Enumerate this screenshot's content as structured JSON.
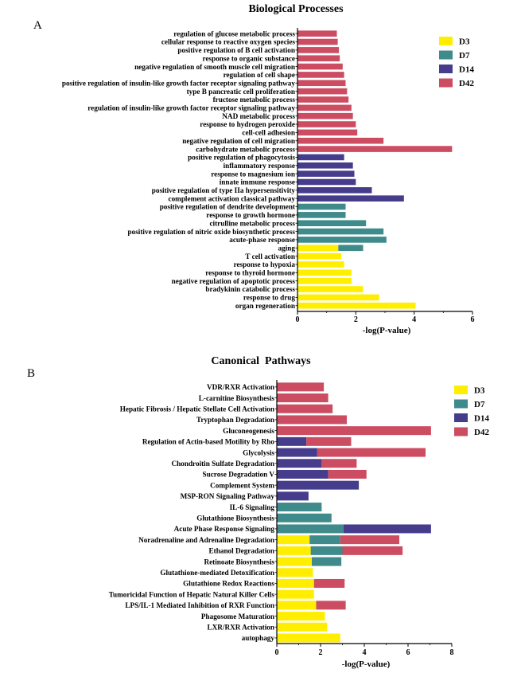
{
  "figure": {
    "panels": [
      {
        "letter": "A"
      },
      {
        "letter": "B"
      }
    ]
  },
  "colors": {
    "D3": "#ffee00",
    "D7": "#3f8a8a",
    "D14": "#463c8c",
    "D42": "#cc4c62"
  },
  "chart_data": [
    {
      "type": "bar",
      "orientation": "horizontal",
      "stacked": true,
      "title": "Biological Processes",
      "xlabel": "-log(P-value)",
      "xlim": [
        0,
        6
      ],
      "xticks": [
        0,
        2,
        4,
        6
      ],
      "legend_position": "top-right",
      "categories": [
        "regulation of glucose metabolic process",
        "cellular response to reactive oxygen species",
        "positive regulation of B cell activation",
        "response to organic substance",
        "negative regulation of smooth muscle cell migration",
        "regulation of cell shape",
        "positive regulation of insulin-like growth factor receptor signaling pathway",
        "type B pancreatic cell proliferation",
        "fructose metabolic process",
        "regulation of insulin-like growth factor receptor signaling pathway",
        "NAD metabolic process",
        "response to hydrogen peroxide",
        "cell-cell adhesion",
        "negative regulation of cell migration",
        "carbohydrate metabolic process",
        "positive regulation of phagocytosis",
        "inflammatory response",
        "response to magnesium ion",
        "innate immune response",
        "positive regulation of type IIa hypersensitivity",
        "complement activation classical pathway",
        "positive regulation of dendrite development",
        "response to growth hormone",
        "citrulline metabolic process",
        "positive regulation of nitric oxide biosynthetic process",
        "acute-phase response",
        "aging",
        "T cell activation",
        "response to hypoxia",
        "response to thyroid hormone",
        "negative regulation of apoptotic process",
        "bradykinin catabolic process",
        "response to drug",
        "organ regeneration"
      ],
      "series": [
        {
          "name": "D3",
          "values": [
            0,
            0,
            0,
            0,
            0,
            0,
            0,
            0,
            0,
            0,
            0,
            0,
            0,
            0,
            0,
            0,
            0,
            0,
            0,
            0,
            0,
            0,
            0,
            0,
            0,
            0,
            1.4,
            1.5,
            1.6,
            1.85,
            1.85,
            2.25,
            2.8,
            4.05
          ]
        },
        {
          "name": "D7",
          "values": [
            0,
            0,
            0,
            0,
            0,
            0,
            0,
            0,
            0,
            0,
            0,
            0,
            0,
            0,
            0,
            0,
            0,
            0,
            0,
            0,
            0,
            1.65,
            1.65,
            2.35,
            2.95,
            3.05,
            0.85,
            0,
            0,
            0,
            0,
            0,
            0,
            0
          ]
        },
        {
          "name": "D14",
          "values": [
            0,
            0,
            0,
            0,
            0,
            0,
            0,
            0,
            0,
            0,
            0,
            0,
            0,
            0,
            0,
            1.6,
            1.9,
            1.95,
            2.0,
            2.55,
            3.65,
            0,
            0,
            0,
            0,
            0,
            0,
            0,
            0,
            0,
            0,
            0,
            0,
            0
          ]
        },
        {
          "name": "D42",
          "values": [
            1.35,
            1.38,
            1.42,
            1.45,
            1.55,
            1.6,
            1.65,
            1.7,
            1.75,
            1.85,
            1.9,
            2.0,
            2.05,
            2.95,
            5.3,
            0,
            0,
            0,
            0,
            0,
            0,
            0,
            0,
            0,
            0,
            0,
            0,
            0,
            0,
            0,
            0,
            0,
            0,
            0
          ]
        }
      ]
    },
    {
      "type": "bar",
      "orientation": "horizontal",
      "stacked": true,
      "title": "Canonical  Pathways",
      "xlabel": "-log(P-value)",
      "xlim": [
        0,
        8
      ],
      "xticks": [
        0,
        2,
        4,
        6,
        8
      ],
      "legend_position": "top-right",
      "categories": [
        "VDR/RXR Activation",
        "L-carnitine Biosynthesis",
        "Hepatic Fibrosis / Hepatic Stellate Cell Activation",
        "Tryptophan Degradation",
        "Gluconeogenesis",
        "Regulation of Actin-based Motility by Rho",
        "Glycolysis",
        "Chondroitin Sulfate Degradation",
        "Sucrose Degradation V",
        "Complement System",
        "MSP-RON Signaling Pathway",
        "IL-6 Signaling",
        "Glutathione Biosynthesis",
        "Acute Phase Response Signaling",
        "Noradrenaline and Adrenaline Degradation",
        "Ethanol Degradation",
        "Retinoate Biosynthesis",
        "Glutathione-mediated Detoxification",
        "Glutathione Redox Reactions",
        "Tumoricidal Function of Hepatic Natural Killer Cells",
        "LPS/IL-1 Mediated Inhibition of RXR Function",
        "Phagosome Maturation",
        "LXR/RXR Activation",
        "autophagy"
      ],
      "series": [
        {
          "name": "D3",
          "values": [
            0,
            0,
            0,
            0,
            0,
            0,
            0,
            0,
            0,
            0,
            0,
            0,
            0,
            0,
            1.5,
            1.55,
            1.6,
            1.65,
            1.7,
            1.7,
            1.8,
            2.2,
            2.3,
            2.9
          ]
        },
        {
          "name": "D7",
          "values": [
            0,
            0,
            0,
            0,
            0,
            0,
            0,
            0,
            0,
            0,
            0,
            2.05,
            2.5,
            3.05,
            1.4,
            1.45,
            1.35,
            0,
            0,
            0,
            0,
            0,
            0,
            0
          ]
        },
        {
          "name": "D14",
          "values": [
            0,
            0,
            0,
            0,
            0,
            1.35,
            1.85,
            2.05,
            2.35,
            3.75,
            1.45,
            0,
            0,
            4.0,
            0,
            0,
            0,
            0,
            0,
            0,
            0,
            0,
            0,
            0
          ]
        },
        {
          "name": "D42",
          "values": [
            2.15,
            2.35,
            2.55,
            3.2,
            7.05,
            2.05,
            4.95,
            1.6,
            1.75,
            0,
            0,
            0,
            0,
            0,
            2.7,
            2.75,
            0,
            0,
            1.4,
            0,
            1.35,
            0,
            0,
            0
          ]
        }
      ]
    }
  ]
}
